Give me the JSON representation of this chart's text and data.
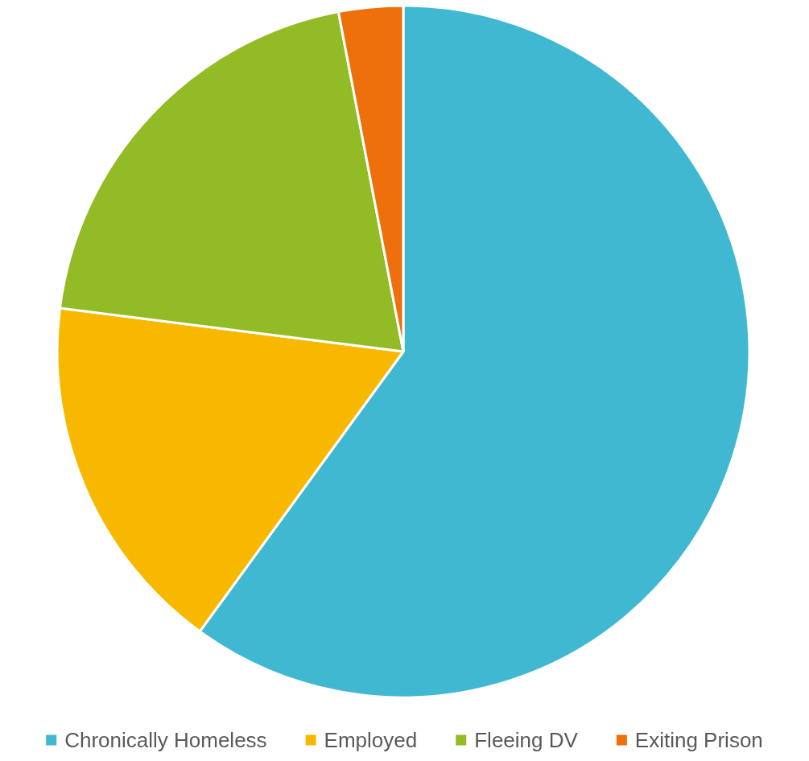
{
  "chart_data": {
    "type": "pie",
    "categories": [
      "Chronically Homeless",
      "Employed",
      "Fleeing DV",
      "Exiting Prison"
    ],
    "values": [
      60,
      17,
      20,
      3
    ],
    "colors": [
      "#41b8d2",
      "#f9b800",
      "#92bb25",
      "#ee700c"
    ],
    "legend": "bottom"
  }
}
